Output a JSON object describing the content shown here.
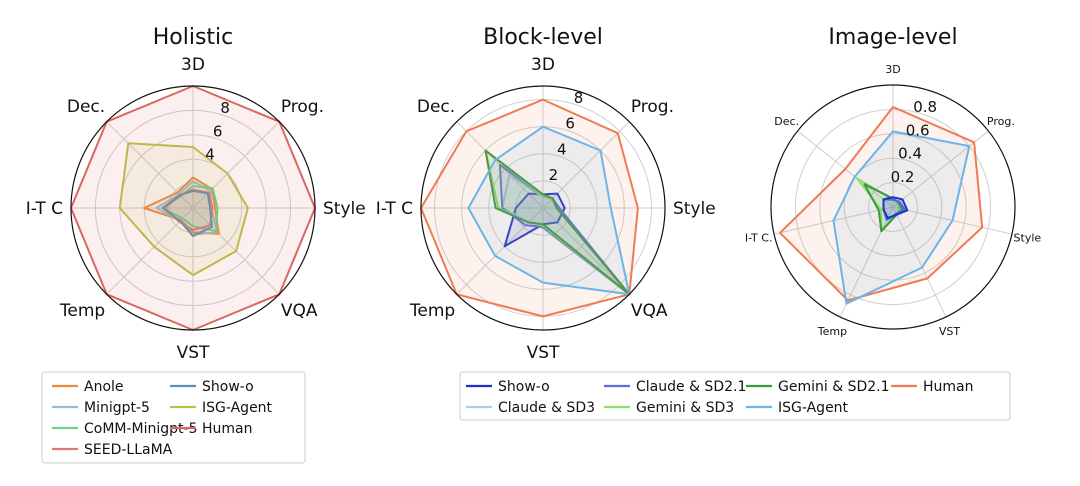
{
  "chart_data": [
    {
      "type": "radar",
      "title": "Holistic",
      "axes": [
        "3D",
        "Prog.",
        "Style",
        "VQA",
        "VST",
        "Temp",
        "I-T C",
        "Dec."
      ],
      "rmax": 10,
      "rticks": [
        2,
        4,
        6,
        8
      ],
      "rtick_labels": [
        "",
        "4",
        "6",
        "8"
      ],
      "series": [
        {
          "name": "Anole",
          "color": "#f0893c",
          "values": [
            2.5,
            2.2,
            1.8,
            3.0,
            2.0,
            1.4,
            4.0,
            1.8
          ]
        },
        {
          "name": "Minigpt-5",
          "color": "#9bb8dc",
          "values": [
            2.2,
            2.0,
            1.5,
            2.8,
            2.2,
            1.5,
            3.0,
            1.6
          ]
        },
        {
          "name": "CoMM-Minigpt-5",
          "color": "#6bd389",
          "values": [
            1.8,
            2.3,
            2.0,
            2.7,
            1.5,
            1.2,
            2.5,
            1.4
          ]
        },
        {
          "name": "SEED-LLaMA",
          "color": "#e07878",
          "values": [
            1.5,
            1.8,
            1.6,
            2.0,
            1.8,
            1.6,
            2.3,
            1.5
          ]
        },
        {
          "name": "Show-o",
          "color": "#5e8fb5",
          "values": [
            1.4,
            1.7,
            1.4,
            2.2,
            2.3,
            1.5,
            2.5,
            1.5
          ]
        },
        {
          "name": "ISG-Agent",
          "color": "#b9c24a",
          "values": [
            5.0,
            4.0,
            4.5,
            5.0,
            5.5,
            4.5,
            6.0,
            7.5
          ]
        },
        {
          "name": "Human",
          "color": "#d9675f",
          "values": [
            10,
            10,
            10,
            10,
            10,
            10,
            10,
            10
          ]
        }
      ],
      "legend": {
        "placement": "bottom",
        "columns": 2
      }
    },
    {
      "type": "radar",
      "title": "Block-level",
      "axes": [
        "3D",
        "Prog.",
        "Style",
        "VQA",
        "VST",
        "Temp",
        "I-T C",
        "Dec."
      ],
      "rmax": 9,
      "rticks": [
        2,
        4,
        6,
        8
      ],
      "rtick_labels": [
        "2",
        "4",
        "6",
        "8"
      ],
      "series": [
        {
          "name": "Show-o",
          "color": "#1a33c8",
          "values": [
            1.0,
            1.5,
            1.6,
            1.5,
            1.2,
            4.0,
            2.0,
            1.5
          ]
        },
        {
          "name": "Claude & SD3",
          "color": "#a9cfef",
          "values": [
            0.8,
            1.0,
            1.2,
            9.0,
            1.5,
            1.5,
            3.0,
            3.5
          ]
        },
        {
          "name": "Claude & SD2.1",
          "color": "#5a6fe0",
          "values": [
            0.9,
            1.0,
            1.2,
            9.0,
            1.4,
            1.8,
            3.0,
            4.5
          ]
        },
        {
          "name": "Gemini & SD3",
          "color": "#8fe06a",
          "values": [
            0.9,
            0.9,
            1.0,
            9.0,
            1.3,
            1.5,
            3.3,
            6.0
          ]
        },
        {
          "name": "Gemini & SD2.1",
          "color": "#3a9a3e",
          "values": [
            1.0,
            1.0,
            1.0,
            9.0,
            1.2,
            1.5,
            3.5,
            6.0
          ]
        },
        {
          "name": "Human",
          "color": "#f07b52",
          "values": [
            8.0,
            7.8,
            7.0,
            9.0,
            8.0,
            9.0,
            9.0,
            8.0
          ]
        },
        {
          "name": "ISG-Agent",
          "color": "#6ab5ea",
          "values": [
            6.0,
            6.0,
            5.0,
            9.0,
            5.5,
            5.0,
            5.5,
            5.0
          ]
        }
      ],
      "legend": {
        "placement": "bottom",
        "columns": 4
      }
    },
    {
      "type": "radar",
      "title": "Image-level",
      "axes": [
        "3D",
        "Prog.",
        "Style",
        "VST",
        "Temp",
        "I-T C.",
        "Dec."
      ],
      "rmax": 1.0,
      "rticks": [
        0.2,
        0.4,
        0.6,
        0.8
      ],
      "rtick_labels": [
        "0.2",
        "0.4",
        "0.6",
        "0.8"
      ],
      "series": [
        {
          "name": "Human",
          "color": "#f07b52",
          "values": [
            0.82,
            0.85,
            0.75,
            0.65,
            0.85,
            0.95,
            0.5
          ]
        },
        {
          "name": "ISG-Agent",
          "color": "#6ab5ea",
          "values": [
            0.62,
            0.8,
            0.5,
            0.55,
            0.88,
            0.5,
            0.4
          ]
        },
        {
          "name": "Gemini & SD3",
          "color": "#8fe06a",
          "values": [
            0.06,
            0.05,
            0.06,
            0.06,
            0.22,
            0.1,
            0.38
          ]
        },
        {
          "name": "Gemini & SD2.1",
          "color": "#3a9a3e",
          "values": [
            0.07,
            0.06,
            0.08,
            0.07,
            0.22,
            0.12,
            0.3
          ]
        },
        {
          "name": "Claude & SD2.1",
          "color": "#5a6fe0",
          "values": [
            0.06,
            0.07,
            0.1,
            0.06,
            0.12,
            0.08,
            0.1
          ]
        },
        {
          "name": "Show-o",
          "color": "#1a33c8",
          "values": [
            0.08,
            0.1,
            0.12,
            0.07,
            0.1,
            0.08,
            0.1
          ]
        }
      ]
    }
  ]
}
